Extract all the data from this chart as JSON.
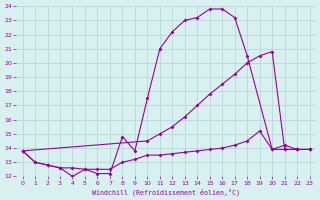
{
  "xlabel": "Windchill (Refroidissement éolien,°C)",
  "bg_color": "#d8f0f0",
  "grid_color": "#b8d8d8",
  "line_color": "#990099",
  "xlim": [
    -0.5,
    23.5
  ],
  "ylim": [
    12,
    24
  ],
  "xticks": [
    0,
    1,
    2,
    3,
    4,
    5,
    6,
    7,
    8,
    9,
    10,
    11,
    12,
    13,
    14,
    15,
    16,
    17,
    18,
    19,
    20,
    21,
    22,
    23
  ],
  "yticks": [
    12,
    13,
    14,
    15,
    16,
    17,
    18,
    19,
    20,
    21,
    22,
    23,
    24
  ],
  "line1_x": [
    0,
    1,
    2,
    3,
    4,
    5,
    6,
    7,
    8,
    9,
    10,
    11,
    12,
    13,
    14,
    15,
    16,
    17,
    18,
    20,
    21,
    22,
    23
  ],
  "line1_y": [
    13.8,
    13.0,
    12.8,
    12.6,
    12.0,
    12.5,
    12.2,
    12.2,
    14.8,
    13.8,
    17.5,
    21.0,
    22.2,
    23.0,
    23.2,
    23.8,
    23.8,
    23.2,
    20.5,
    13.9,
    14.2,
    13.9,
    13.9
  ],
  "line2_x": [
    0,
    10,
    11,
    12,
    13,
    14,
    15,
    16,
    17,
    18,
    19,
    20,
    21,
    22,
    23
  ],
  "line2_y": [
    13.8,
    14.5,
    15.0,
    15.5,
    16.2,
    17.0,
    17.8,
    18.5,
    19.2,
    20.0,
    20.5,
    20.8,
    13.9,
    13.9,
    13.9
  ],
  "line3_x": [
    0,
    1,
    2,
    3,
    4,
    5,
    6,
    7,
    8,
    9,
    10,
    11,
    12,
    13,
    14,
    15,
    16,
    17,
    18,
    19,
    20,
    21,
    22,
    23
  ],
  "line3_y": [
    13.8,
    13.0,
    12.8,
    12.6,
    12.6,
    12.5,
    12.5,
    12.5,
    13.0,
    13.2,
    13.5,
    13.5,
    13.6,
    13.7,
    13.8,
    13.9,
    14.0,
    14.2,
    14.5,
    15.2,
    13.9,
    13.9,
    13.9,
    13.9
  ]
}
